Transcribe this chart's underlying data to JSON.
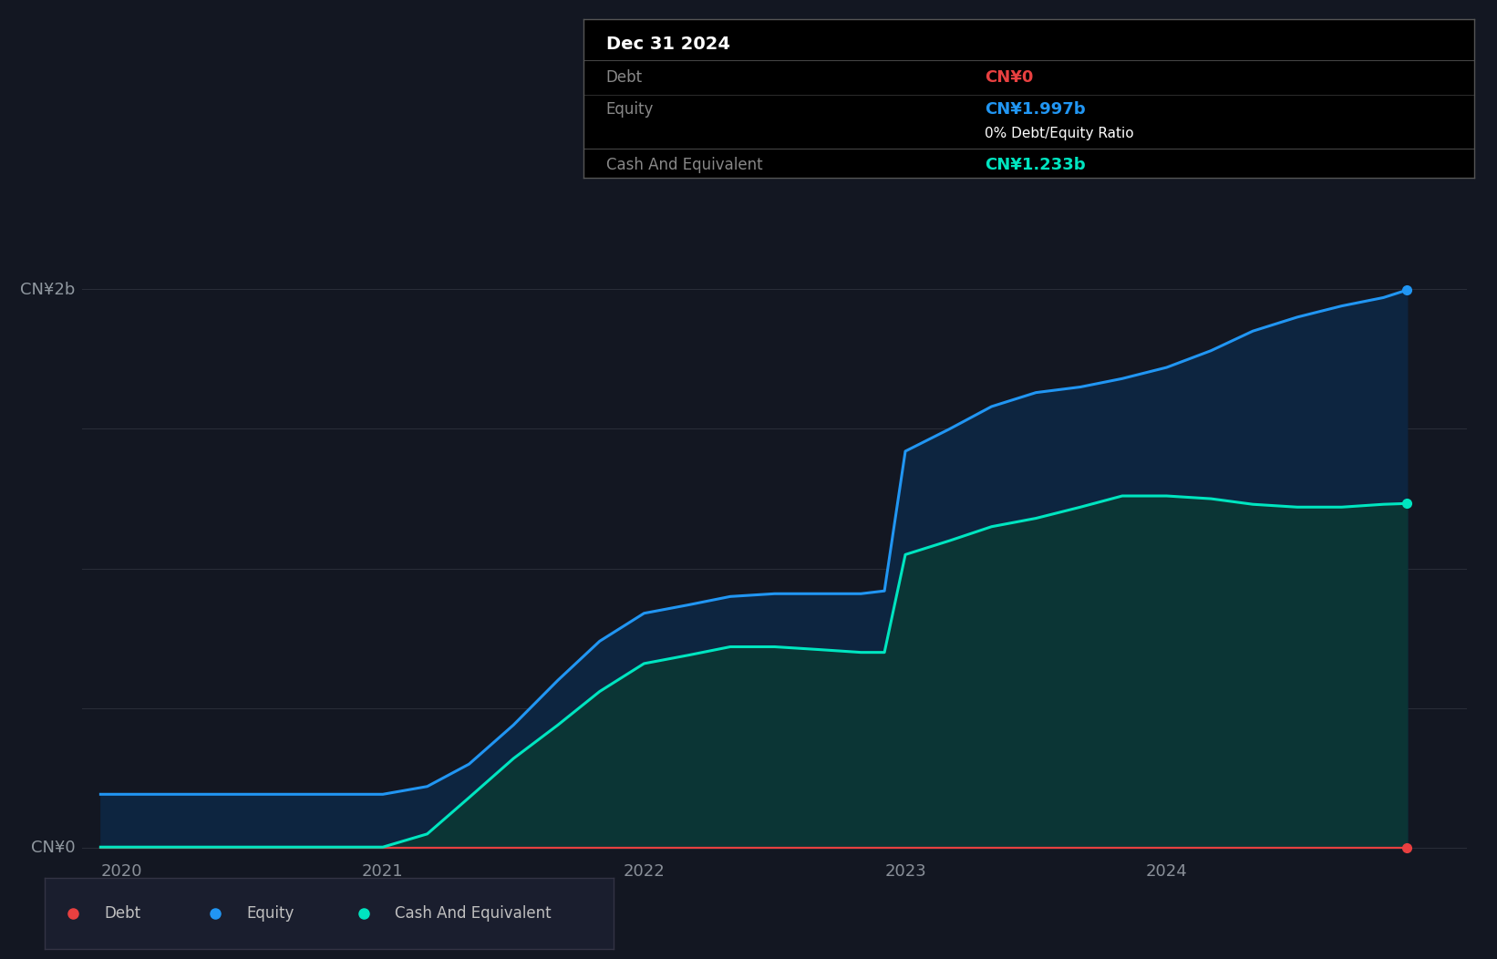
{
  "background_color": "#131722",
  "plot_bg_color": "#131722",
  "grid_color": "#2a2e39",
  "debt_color": "#e84040",
  "equity_color": "#2196f3",
  "cash_color": "#00e5c0",
  "equity_fill_color": "#0d2540",
  "cash_fill_color": "#0b3535",
  "x_ticks": [
    "2020",
    "2021",
    "2022",
    "2023",
    "2024"
  ],
  "x_tick_positions": [
    2020,
    2021,
    2022,
    2023,
    2024
  ],
  "legend_labels": [
    "Debt",
    "Equity",
    "Cash And Equivalent"
  ],
  "tooltip_title": "Dec 31 2024",
  "tooltip_debt_label": "Debt",
  "tooltip_debt_value": "CN¥0",
  "tooltip_equity_label": "Equity",
  "tooltip_equity_value": "CN¥1.997b",
  "tooltip_ratio": "0% Debt/Equity Ratio",
  "tooltip_cash_label": "Cash And Equivalent",
  "tooltip_cash_value": "CN¥1.233b",
  "ylabel_cn0": "CN¥0",
  "ylabel_cn2b": "CN¥2b",
  "dates": [
    2019.92,
    2020.0,
    2020.17,
    2020.33,
    2020.5,
    2020.67,
    2020.83,
    2021.0,
    2021.17,
    2021.33,
    2021.5,
    2021.67,
    2021.83,
    2022.0,
    2022.17,
    2022.33,
    2022.5,
    2022.67,
    2022.83,
    2022.92,
    2023.0,
    2023.17,
    2023.33,
    2023.5,
    2023.67,
    2023.83,
    2024.0,
    2024.17,
    2024.33,
    2024.5,
    2024.67,
    2024.83,
    2024.92
  ],
  "equity": [
    0.192,
    0.192,
    0.192,
    0.192,
    0.192,
    0.192,
    0.192,
    0.192,
    0.22,
    0.3,
    0.44,
    0.6,
    0.74,
    0.84,
    0.87,
    0.9,
    0.91,
    0.91,
    0.91,
    0.92,
    1.42,
    1.5,
    1.58,
    1.63,
    1.65,
    1.68,
    1.72,
    1.78,
    1.85,
    1.9,
    1.94,
    1.97,
    1.997
  ],
  "cash": [
    0.003,
    0.003,
    0.003,
    0.003,
    0.003,
    0.003,
    0.003,
    0.003,
    0.05,
    0.18,
    0.32,
    0.44,
    0.56,
    0.66,
    0.69,
    0.72,
    0.72,
    0.71,
    0.7,
    0.7,
    1.05,
    1.1,
    1.15,
    1.18,
    1.22,
    1.26,
    1.26,
    1.25,
    1.23,
    1.22,
    1.22,
    1.23,
    1.233
  ],
  "debt": [
    0.0,
    0.0,
    0.0,
    0.0,
    0.0,
    0.0,
    0.0,
    0.0,
    0.0,
    0.0,
    0.0,
    0.0,
    0.0,
    0.0,
    0.0,
    0.0,
    0.0,
    0.0,
    0.0,
    0.0,
    0.0,
    0.0,
    0.0,
    0.0,
    0.0,
    0.0,
    0.0,
    0.0,
    0.0,
    0.0,
    0.0,
    0.0,
    0.0
  ],
  "ylim_min": -0.02,
  "ylim_max": 2.28,
  "xlim_min": 2019.85,
  "xlim_max": 2025.15
}
